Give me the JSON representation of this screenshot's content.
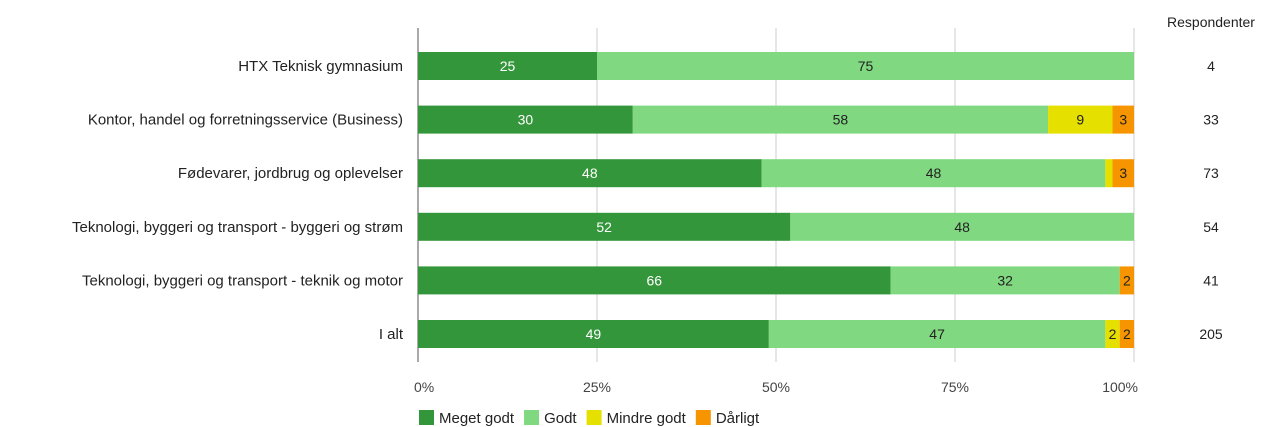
{
  "chart_data": {
    "type": "bar",
    "orientation": "horizontal",
    "stacked": true,
    "percent": true,
    "categories": [
      "HTX Teknisk gymnasium",
      "Kontor, handel og forretningsservice (Business)",
      "Fødevarer, jordbrug og oplevelser",
      "Teknologi, byggeri og transport - byggeri og strøm",
      "Teknologi, byggeri og transport - teknik og motor",
      "I alt"
    ],
    "series": [
      {
        "name": "Meget godt",
        "color": "#34963a",
        "label_color": "#ffffff",
        "values": [
          25,
          30,
          48,
          52,
          66,
          49
        ]
      },
      {
        "name": "Godt",
        "color": "#80d880",
        "label_color": "#222222",
        "values": [
          75,
          58,
          48,
          48,
          32,
          47
        ]
      },
      {
        "name": "Mindre godt",
        "color": "#e6e000",
        "label_color": "#222222",
        "values": [
          0,
          9,
          1,
          0,
          0,
          2
        ]
      },
      {
        "name": "Dårligt",
        "color": "#f79500",
        "label_color": "#222222",
        "values": [
          0,
          3,
          3,
          0,
          2,
          2
        ]
      }
    ],
    "data_labels": [
      [
        "25",
        "30",
        "48",
        "52",
        "66",
        "49"
      ],
      [
        "75",
        "58",
        "48",
        "48",
        "32",
        "47"
      ],
      [
        "",
        "9",
        "",
        "",
        "",
        "2"
      ],
      [
        "",
        "3",
        "3",
        "",
        "2",
        "2"
      ]
    ],
    "xlim": [
      0,
      100
    ],
    "x_ticks": [
      0,
      25,
      50,
      75,
      100
    ],
    "x_tick_labels": [
      "0%",
      "25%",
      "50%",
      "75%",
      "100%"
    ],
    "grid": true,
    "legend_position": "bottom",
    "respondents_header": "Respondenter",
    "respondents": [
      "4",
      "33",
      "73",
      "54",
      "41",
      "205"
    ]
  }
}
